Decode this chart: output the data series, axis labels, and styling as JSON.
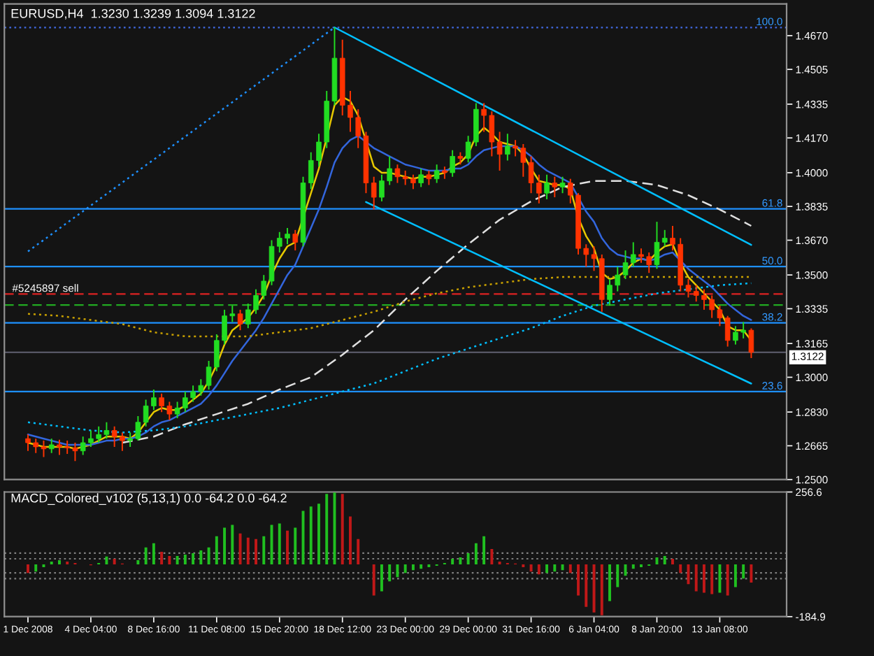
{
  "chart_data": [
    {
      "type": "candlestick",
      "title": "EURUSD,H4  1.3230 1.3239 1.3094 1.3122",
      "ohlc": [
        [
          1.27,
          1.272,
          1.264,
          1.268
        ],
        [
          1.268,
          1.27,
          1.263,
          1.266
        ],
        [
          1.266,
          1.269,
          1.261,
          1.265
        ],
        [
          1.265,
          1.27,
          1.263,
          1.267
        ],
        [
          1.267,
          1.2695,
          1.262,
          1.266
        ],
        [
          1.266,
          1.269,
          1.2625,
          1.2655
        ],
        [
          1.2655,
          1.268,
          1.259,
          1.264
        ],
        [
          1.264,
          1.271,
          1.262,
          1.268
        ],
        [
          1.268,
          1.274,
          1.266,
          1.27
        ],
        [
          1.27,
          1.276,
          1.268,
          1.272
        ],
        [
          1.272,
          1.278,
          1.27,
          1.274
        ],
        [
          1.274,
          1.276,
          1.266,
          1.271
        ],
        [
          1.271,
          1.273,
          1.264,
          1.269
        ],
        [
          1.269,
          1.273,
          1.266,
          1.27
        ],
        [
          1.27,
          1.281,
          1.269,
          1.278
        ],
        [
          1.278,
          1.289,
          1.276,
          1.286
        ],
        [
          1.286,
          1.294,
          1.284,
          1.29
        ],
        [
          1.29,
          1.292,
          1.283,
          1.286
        ],
        [
          1.286,
          1.288,
          1.279,
          1.282
        ],
        [
          1.282,
          1.288,
          1.28,
          1.285
        ],
        [
          1.285,
          1.293,
          1.283,
          1.29
        ],
        [
          1.29,
          1.296,
          1.288,
          1.293
        ],
        [
          1.293,
          1.299,
          1.291,
          1.296
        ],
        [
          1.296,
          1.308,
          1.294,
          1.305
        ],
        [
          1.305,
          1.321,
          1.303,
          1.318
        ],
        [
          1.318,
          1.333,
          1.316,
          1.33
        ],
        [
          1.33,
          1.335,
          1.327,
          1.331
        ],
        [
          1.331,
          1.333,
          1.323,
          1.326
        ],
        [
          1.326,
          1.336,
          1.324,
          1.333
        ],
        [
          1.333,
          1.343,
          1.331,
          1.34
        ],
        [
          1.34,
          1.35,
          1.338,
          1.347
        ],
        [
          1.347,
          1.367,
          1.345,
          1.364
        ],
        [
          1.364,
          1.371,
          1.361,
          1.368
        ],
        [
          1.368,
          1.373,
          1.365,
          1.37
        ],
        [
          1.37,
          1.372,
          1.362,
          1.366
        ],
        [
          1.366,
          1.398,
          1.364,
          1.395
        ],
        [
          1.395,
          1.41,
          1.392,
          1.406
        ],
        [
          1.406,
          1.419,
          1.403,
          1.415
        ],
        [
          1.415,
          1.44,
          1.412,
          1.435
        ],
        [
          1.435,
          1.471,
          1.433,
          1.456
        ],
        [
          1.456,
          1.465,
          1.428,
          1.433
        ],
        [
          1.433,
          1.44,
          1.42,
          1.427
        ],
        [
          1.427,
          1.431,
          1.412,
          1.418
        ],
        [
          1.418,
          1.42,
          1.39,
          1.395
        ],
        [
          1.395,
          1.398,
          1.382,
          1.388
        ],
        [
          1.388,
          1.399,
          1.386,
          1.396
        ],
        [
          1.396,
          1.408,
          1.394,
          1.402
        ],
        [
          1.402,
          1.404,
          1.395,
          1.398
        ],
        [
          1.398,
          1.401,
          1.394,
          1.397
        ],
        [
          1.397,
          1.399,
          1.392,
          1.395
        ],
        [
          1.395,
          1.402,
          1.393,
          1.399
        ],
        [
          1.399,
          1.401,
          1.394,
          1.397
        ],
        [
          1.397,
          1.404,
          1.395,
          1.401
        ],
        [
          1.401,
          1.403,
          1.397,
          1.4
        ],
        [
          1.4,
          1.411,
          1.398,
          1.408
        ],
        [
          1.408,
          1.41,
          1.404,
          1.407
        ],
        [
          1.407,
          1.418,
          1.405,
          1.415
        ],
        [
          1.415,
          1.434,
          1.413,
          1.431
        ],
        [
          1.431,
          1.434,
          1.42,
          1.428
        ],
        [
          1.428,
          1.43,
          1.408,
          1.415
        ],
        [
          1.415,
          1.42,
          1.401,
          1.409
        ],
        [
          1.409,
          1.419,
          1.406,
          1.413
        ],
        [
          1.413,
          1.416,
          1.408,
          1.412
        ],
        [
          1.412,
          1.414,
          1.398,
          1.405
        ],
        [
          1.405,
          1.408,
          1.39,
          1.395
        ],
        [
          1.395,
          1.399,
          1.385,
          1.39
        ],
        [
          1.39,
          1.399,
          1.387,
          1.395
        ],
        [
          1.395,
          1.398,
          1.388,
          1.393
        ],
        [
          1.393,
          1.398,
          1.39,
          1.395
        ],
        [
          1.395,
          1.397,
          1.385,
          1.389
        ],
        [
          1.389,
          1.39,
          1.36,
          1.363
        ],
        [
          1.363,
          1.365,
          1.354,
          1.36
        ],
        [
          1.36,
          1.364,
          1.352,
          1.358
        ],
        [
          1.358,
          1.36,
          1.332,
          1.338
        ],
        [
          1.338,
          1.348,
          1.335,
          1.345
        ],
        [
          1.345,
          1.354,
          1.342,
          1.35
        ],
        [
          1.35,
          1.362,
          1.348,
          1.356
        ],
        [
          1.356,
          1.366,
          1.354,
          1.36
        ],
        [
          1.36,
          1.363,
          1.356,
          1.359
        ],
        [
          1.359,
          1.361,
          1.351,
          1.355
        ],
        [
          1.355,
          1.376,
          1.353,
          1.366
        ],
        [
          1.366,
          1.372,
          1.364,
          1.368
        ],
        [
          1.368,
          1.374,
          1.362,
          1.365
        ],
        [
          1.365,
          1.368,
          1.342,
          1.345
        ],
        [
          1.345,
          1.348,
          1.339,
          1.342
        ],
        [
          1.342,
          1.345,
          1.337,
          1.34
        ],
        [
          1.34,
          1.343,
          1.333,
          1.338
        ],
        [
          1.338,
          1.34,
          1.329,
          1.333
        ],
        [
          1.333,
          1.335,
          1.325,
          1.329
        ],
        [
          1.329,
          1.33,
          1.315,
          1.318
        ],
        [
          1.318,
          1.325,
          1.316,
          1.322
        ],
        [
          1.322,
          1.327,
          1.319,
          1.323
        ],
        [
          1.323,
          1.3239,
          1.3094,
          1.3122
        ]
      ],
      "colors": [
        "#ff3300",
        "#ff3300",
        "#ff3300",
        "#22dd22",
        "#ff3300",
        "#ff3300",
        "#ff3300",
        "#22dd22",
        "#22dd22",
        "#22dd22",
        "#22dd22",
        "#ff3300",
        "#ff3300",
        "#22dd22",
        "#22dd22",
        "#22dd22",
        "#22dd22",
        "#ff3300",
        "#ff3300",
        "#22dd22",
        "#22dd22",
        "#22dd22",
        "#22dd22",
        "#22dd22",
        "#22dd22",
        "#22dd22",
        "#22dd22",
        "#ff3300",
        "#22dd22",
        "#22dd22",
        "#22dd22",
        "#22dd22",
        "#22dd22",
        "#22dd22",
        "#ff3300",
        "#22dd22",
        "#22dd22",
        "#22dd22",
        "#22dd22",
        "#22dd22",
        "#ff3300",
        "#ff3300",
        "#ff3300",
        "#ff3300",
        "#ff3300",
        "#22dd22",
        "#22dd22",
        "#ff3300",
        "#ff3300",
        "#ff3300",
        "#22dd22",
        "#ff3300",
        "#22dd22",
        "#ff3300",
        "#22dd22",
        "#ff3300",
        "#22dd22",
        "#22dd22",
        "#ff3300",
        "#ff3300",
        "#ff3300",
        "#22dd22",
        "#ff3300",
        "#ff3300",
        "#ff3300",
        "#ff3300",
        "#22dd22",
        "#ff3300",
        "#22dd22",
        "#ff3300",
        "#ff3300",
        "#ff3300",
        "#ff3300",
        "#ff3300",
        "#22dd22",
        "#22dd22",
        "#22dd22",
        "#22dd22",
        "#ff3300",
        "#ff3300",
        "#22dd22",
        "#22dd22",
        "#ff3300",
        "#ff3300",
        "#ff3300",
        "#ff3300",
        "#ff3300",
        "#ff3300",
        "#ff3300",
        "#ff3300",
        "#22dd22",
        "#22dd22",
        "#ff3300"
      ],
      "series": [
        {
          "type": "line",
          "color": "#e6c800",
          "line_style": "solid",
          "values": [
            1.268,
            1.267,
            1.266,
            1.266,
            1.266,
            1.266,
            1.265,
            1.266,
            1.267,
            1.269,
            1.271,
            1.271,
            1.271,
            1.27,
            1.273,
            1.278,
            1.283,
            1.285,
            1.284,
            1.284,
            1.286,
            1.289,
            1.292,
            1.298,
            1.306,
            1.316,
            1.323,
            1.326,
            1.329,
            1.334,
            1.34,
            1.35,
            1.358,
            1.364,
            1.366,
            null,
            1.39,
            1.402,
            1.417,
            1.433,
            1.437,
            1.435,
            1.428,
            null,
            1.403,
            1.4,
            1.4,
            1.399,
            1.398,
            1.397,
            1.398,
            1.398,
            1.399,
            1.4,
            1.403,
            1.405,
            1.409,
            1.418,
            1.422,
            1.419,
            1.415,
            1.414,
            1.413,
            1.409,
            1.402,
            1.396,
            1.395,
            1.394,
            1.394,
            1.392,
            1.378,
            1.369,
            1.363,
            1.351,
            1.348,
            1.349,
            1.352,
            1.356,
            1.358,
            1.357,
            1.361,
            1.364,
            1.365,
            1.356,
            1.349,
            1.345,
            1.341,
            1.337,
            1.333,
            1.325,
            1.323,
            1.323,
            1.318
          ]
        },
        {
          "type": "line",
          "color": "#3366dd",
          "line_style": "solid",
          "values": [
            1.272,
            1.271,
            1.27,
            1.269,
            1.268,
            1.267,
            1.267,
            1.267,
            1.267,
            1.268,
            1.269,
            1.269,
            1.27,
            1.27,
            1.271,
            1.273,
            1.276,
            1.278,
            1.279,
            1.281,
            1.283,
            1.285,
            1.287,
            1.291,
            1.296,
            1.302,
            1.308,
            1.313,
            1.318,
            1.323,
            1.329,
            1.336,
            1.343,
            1.35,
            1.355,
            1.364,
            1.373,
            1.382,
            1.393,
            1.405,
            1.412,
            1.416,
            1.418,
            1.415,
            1.412,
            1.41,
            1.408,
            1.406,
            1.404,
            1.403,
            1.402,
            1.401,
            1.401,
            1.401,
            1.402,
            1.402,
            1.404,
            1.408,
            1.411,
            1.412,
            1.413,
            1.413,
            1.413,
            1.411,
            1.408,
            1.404,
            1.401,
            1.399,
            1.397,
            1.395,
            1.388,
            1.381,
            1.376,
            1.368,
            1.363,
            1.36,
            1.359,
            1.358,
            1.358,
            1.357,
            1.358,
            1.36,
            1.361,
            1.357,
            1.353,
            1.35,
            1.347,
            1.344,
            1.34,
            1.336,
            1.333,
            1.33,
            1.328
          ]
        },
        {
          "type": "line",
          "color": "#e0e0e0",
          "line_style": "dashed",
          "values": [
            null,
            null,
            null,
            null,
            null,
            null,
            null,
            null,
            null,
            null,
            null,
            null,
            1.268,
            null,
            null,
            null,
            1.271,
            null,
            null,
            null,
            1.277,
            null,
            null,
            null,
            1.282,
            null,
            null,
            null,
            1.287,
            null,
            null,
            null,
            1.294,
            null,
            null,
            null,
            1.3,
            null,
            null,
            null,
            1.311,
            null,
            null,
            null,
            1.323,
            null,
            null,
            null,
            1.338,
            null,
            null,
            null,
            1.352,
            null,
            null,
            null,
            1.365,
            null,
            null,
            null,
            1.377,
            null,
            null,
            null,
            1.386,
            null,
            null,
            null,
            1.393,
            null,
            null,
            null,
            1.396,
            null,
            null,
            null,
            1.396,
            null,
            null,
            null,
            1.394,
            null,
            null,
            null,
            1.389,
            null,
            null,
            null,
            1.382,
            null,
            null,
            null,
            1.374
          ]
        },
        {
          "type": "line",
          "color": "#c8a000",
          "line_style": "dotted",
          "values": [
            1.331,
            null,
            null,
            null,
            1.33,
            null,
            null,
            null,
            1.328,
            null,
            null,
            null,
            1.326,
            null,
            null,
            null,
            1.322,
            null,
            null,
            null,
            1.32,
            null,
            null,
            null,
            1.32,
            null,
            null,
            null,
            1.32,
            null,
            null,
            null,
            1.322,
            null,
            null,
            null,
            1.324,
            null,
            null,
            null,
            1.328,
            null,
            null,
            null,
            1.332,
            null,
            null,
            null,
            1.337,
            null,
            null,
            null,
            1.341,
            null,
            null,
            null,
            1.344,
            null,
            null,
            null,
            1.346,
            null,
            null,
            null,
            1.348,
            null,
            null,
            null,
            1.349,
            null,
            null,
            null,
            1.349,
            null,
            null,
            null,
            1.349,
            null,
            null,
            null,
            1.349,
            null,
            null,
            null,
            1.349,
            null,
            null,
            null,
            1.349,
            null,
            null,
            null,
            1.349
          ]
        },
        {
          "type": "line",
          "color": "#00bfff",
          "line_style": "dotted",
          "values": [
            1.278,
            null,
            null,
            null,
            1.276,
            null,
            null,
            null,
            1.274,
            null,
            null,
            null,
            1.273,
            null,
            null,
            null,
            1.274,
            null,
            null,
            null,
            1.276,
            null,
            null,
            null,
            1.279,
            null,
            null,
            null,
            1.282,
            null,
            null,
            null,
            1.285,
            null,
            null,
            null,
            1.289,
            null,
            null,
            null,
            1.293,
            null,
            null,
            null,
            1.297,
            null,
            null,
            null,
            1.303,
            null,
            null,
            null,
            1.309,
            null,
            null,
            null,
            1.314,
            null,
            null,
            null,
            1.319,
            null,
            null,
            null,
            1.324,
            null,
            null,
            null,
            1.33,
            null,
            null,
            null,
            1.335,
            null,
            null,
            null,
            1.338,
            null,
            null,
            null,
            1.341,
            null,
            null,
            null,
            1.343,
            null,
            null,
            null,
            1.345,
            null,
            null,
            null,
            1.346
          ]
        },
        {
          "type": "line",
          "color": "#00bfff",
          "line_style": "solid",
          "values": [
            null,
            null,
            null,
            null,
            null,
            null,
            null,
            null,
            null,
            null,
            null,
            null,
            null,
            null,
            null,
            null,
            null,
            null,
            null,
            null,
            null,
            null,
            null,
            null,
            null,
            null,
            null,
            null,
            null,
            null,
            null,
            null,
            null,
            null,
            null,
            null,
            null,
            null,
            null,
            1.471,
            null,
            null,
            null,
            null,
            null,
            null,
            null,
            null,
            null,
            null,
            null,
            null,
            null,
            null,
            null,
            null,
            null,
            null,
            null,
            null,
            null,
            null,
            null,
            null,
            null,
            null,
            null,
            null,
            null,
            null,
            null,
            null,
            null,
            null,
            null,
            null,
            null,
            null,
            null,
            null,
            null,
            null,
            null,
            null,
            null,
            null,
            null,
            null,
            null,
            null,
            null,
            null,
            1.3647
          ]
        },
        {
          "type": "line",
          "color": "#00bfff",
          "line_style": "solid",
          "values": [
            null,
            null,
            null,
            null,
            null,
            null,
            null,
            null,
            null,
            null,
            null,
            null,
            null,
            null,
            null,
            null,
            null,
            null,
            null,
            null,
            null,
            null,
            null,
            null,
            null,
            null,
            null,
            null,
            null,
            null,
            null,
            null,
            null,
            null,
            null,
            null,
            null,
            null,
            null,
            null,
            null,
            null,
            null,
            1.3857,
            null,
            null,
            null,
            null,
            null,
            null,
            null,
            null,
            null,
            null,
            null,
            null,
            null,
            null,
            null,
            null,
            null,
            null,
            null,
            null,
            null,
            null,
            null,
            null,
            null,
            null,
            null,
            null,
            null,
            null,
            null,
            null,
            null,
            null,
            null,
            null,
            null,
            null,
            null,
            null,
            null,
            null,
            null,
            null,
            null,
            null,
            null,
            null,
            1.2969
          ]
        },
        {
          "type": "line",
          "color": "#1e90ff",
          "line_style": "dotted",
          "values": [
            1.3615,
            null,
            null,
            null,
            null,
            null,
            null,
            null,
            null,
            null,
            null,
            null,
            null,
            null,
            null,
            null,
            null,
            null,
            null,
            null,
            null,
            null,
            null,
            null,
            null,
            null,
            null,
            null,
            null,
            null,
            null,
            null,
            null,
            null,
            null,
            null,
            null,
            null,
            null,
            1.471,
            null,
            null,
            null,
            null,
            null,
            null,
            null,
            null,
            null,
            null,
            null,
            null,
            null,
            null,
            null,
            null,
            null,
            null,
            null,
            null,
            null,
            null,
            null,
            null,
            null,
            null,
            null,
            null,
            null,
            null,
            null,
            null,
            null,
            null,
            null,
            null,
            null,
            null,
            null,
            null,
            null,
            null,
            null,
            null,
            null,
            null,
            null,
            null,
            null,
            null,
            null,
            null,
            null
          ]
        }
      ],
      "ref_lines": [
        {
          "axis": "y",
          "value": 1.471,
          "color": "#4169e1",
          "line_style": "dotted"
        },
        {
          "axis": "y",
          "value": 1.3823,
          "color": "#1e90ff",
          "line_style": "solid"
        },
        {
          "axis": "y",
          "value": 1.3541,
          "color": "#1e90ff",
          "line_style": "solid"
        },
        {
          "axis": "y",
          "value": 1.3266,
          "color": "#1e90ff",
          "line_style": "solid"
        },
        {
          "axis": "y",
          "value": 1.293,
          "color": "#1e90ff",
          "line_style": "solid"
        },
        {
          "axis": "y",
          "value": 1.3407,
          "label": "#5245897 sell",
          "color": "#dd2222",
          "line_style": "dashed"
        },
        {
          "axis": "y",
          "value": 1.3353,
          "color": "#22aa22",
          "line_style": "dashed"
        },
        {
          "axis": "y",
          "value": 1.3122,
          "label": "1.3122",
          "color": "#606070",
          "line_style": "solid"
        }
      ],
      "annotations": [
        {
          "text": "100.0",
          "y": 1.471
        },
        {
          "text": "61.8",
          "y": 1.3823
        },
        {
          "text": "50.0",
          "y": 1.3541
        },
        {
          "text": "38.2",
          "y": 1.3266
        },
        {
          "text": "23.6",
          "y": 1.293
        }
      ],
      "ylim": [
        1.25,
        1.4825
      ],
      "yticks": [
        {
          "value": 1.467,
          "label": "1.4670"
        },
        {
          "value": 1.4505,
          "label": "1.4505"
        },
        {
          "value": 1.4335,
          "label": "1.4335"
        },
        {
          "value": 1.417,
          "label": "1.4170"
        },
        {
          "value": 1.4,
          "label": "1.4000"
        },
        {
          "value": 1.3835,
          "label": "1.3835"
        },
        {
          "value": 1.367,
          "label": "1.3670"
        },
        {
          "value": 1.35,
          "label": "1.3500"
        },
        {
          "value": 1.3335,
          "label": "1.3335"
        },
        {
          "value": 1.3165,
          "label": "1.3165"
        },
        {
          "value": 1.3,
          "label": "1.3000"
        },
        {
          "value": 1.283,
          "label": "1.2830"
        },
        {
          "value": 1.2665,
          "label": "1.2665"
        },
        {
          "value": 1.25,
          "label": "1.2500"
        }
      ],
      "tick_labels": "y"
    },
    {
      "type": "bar",
      "title": "MACD_Colored_v102 (5,13,1) 0.0 -64.2 0.0 -64.2",
      "categories": [
        "1 Dec 2008",
        null,
        null,
        null,
        null,
        null,
        null,
        null,
        "4 Dec 04:00",
        null,
        null,
        null,
        null,
        null,
        null,
        null,
        "8 Dec 16:00",
        null,
        null,
        null,
        null,
        null,
        null,
        null,
        "11 Dec 08:00",
        null,
        null,
        null,
        null,
        null,
        null,
        null,
        "15 Dec 20:00",
        null,
        null,
        null,
        null,
        null,
        null,
        null,
        "18 Dec 12:00",
        null,
        null,
        null,
        null,
        null,
        null,
        null,
        "23 Dec 00:00",
        null,
        null,
        null,
        null,
        null,
        null,
        null,
        "29 Dec 00:00",
        null,
        null,
        null,
        null,
        null,
        null,
        null,
        "31 Dec 16:00",
        null,
        null,
        null,
        null,
        null,
        null,
        null,
        "6 Jan 04:00",
        null,
        null,
        null,
        null,
        null,
        null,
        null,
        "8 Jan 20:00",
        null,
        null,
        null,
        null,
        null,
        null,
        null,
        "13 Jan 08:00",
        null,
        null,
        null,
        null
      ],
      "values": [
        -30,
        -25,
        -10,
        10,
        15,
        10,
        5,
        null,
        -3,
        5,
        28,
        20,
        3,
        null,
        15,
        60,
        75,
        45,
        30,
        30,
        35,
        40,
        50,
        60,
        100,
        130,
        140,
        110,
        95,
        90,
        100,
        140,
        145,
        120,
        130,
        190,
        205,
        215,
        250,
        255,
        250,
        170,
        90,
        null,
        -110,
        -95,
        -60,
        -45,
        -30,
        -20,
        -15,
        -10,
        -5,
        5,
        20,
        25,
        40,
        75,
        100,
        55,
        10,
        5,
        3,
        -10,
        -25,
        -35,
        -30,
        -25,
        -20,
        -30,
        -110,
        -150,
        -170,
        -180,
        -130,
        -80,
        -40,
        -15,
        -10,
        -5,
        25,
        30,
        20,
        -30,
        -70,
        -95,
        -100,
        -105,
        -100,
        -110,
        -80,
        -50,
        -64
      ],
      "colors": [
        "#c01818",
        "#20c020",
        "#20c020",
        "#20c020",
        "#20c020",
        "#c01818",
        "#c01818",
        "#c01818",
        "#c01818",
        "#20c020",
        "#20c020",
        "#c01818",
        "#c01818",
        "#c01818",
        "#20c020",
        "#20c020",
        "#20c020",
        "#c01818",
        "#c01818",
        "#20c020",
        "#20c020",
        "#20c020",
        "#20c020",
        "#20c020",
        "#20c020",
        "#20c020",
        "#20c020",
        "#c01818",
        "#c01818",
        "#c01818",
        "#20c020",
        "#20c020",
        "#20c020",
        "#c01818",
        "#20c020",
        "#20c020",
        "#20c020",
        "#20c020",
        "#20c020",
        "#20c020",
        "#c01818",
        "#c01818",
        "#c01818",
        "#c01818",
        "#c01818",
        "#20c020",
        "#20c020",
        "#20c020",
        "#20c020",
        "#20c020",
        "#20c020",
        "#20c020",
        "#20c020",
        "#20c020",
        "#20c020",
        "#20c020",
        "#20c020",
        "#20c020",
        "#20c020",
        "#c01818",
        "#c01818",
        "#c01818",
        "#c01818",
        "#c01818",
        "#c01818",
        "#c01818",
        "#20c020",
        "#20c020",
        "#20c020",
        "#c01818",
        "#c01818",
        "#c01818",
        "#c01818",
        "#c01818",
        "#20c020",
        "#20c020",
        "#20c020",
        "#20c020",
        "#20c020",
        "#20c020",
        "#20c020",
        "#20c020",
        "#c01818",
        "#c01818",
        "#c01818",
        "#c01818",
        "#c01818",
        "#c01818",
        "#20c020",
        "#c01818",
        "#20c020",
        "#20c020",
        "#c01818"
      ],
      "ref_lines": [
        {
          "axis": "y",
          "value": 40,
          "color": "#808080",
          "line_style": "dotted"
        },
        {
          "axis": "y",
          "value": 20,
          "color": "#808080",
          "line_style": "dotted"
        },
        {
          "axis": "y",
          "value": -30,
          "color": "#808080",
          "line_style": "dotted"
        },
        {
          "axis": "y",
          "value": -50,
          "color": "#808080",
          "line_style": "dotted"
        }
      ],
      "ylim": [
        -184.9,
        256.6
      ],
      "yticks": [
        256.6,
        -184.9
      ]
    }
  ]
}
